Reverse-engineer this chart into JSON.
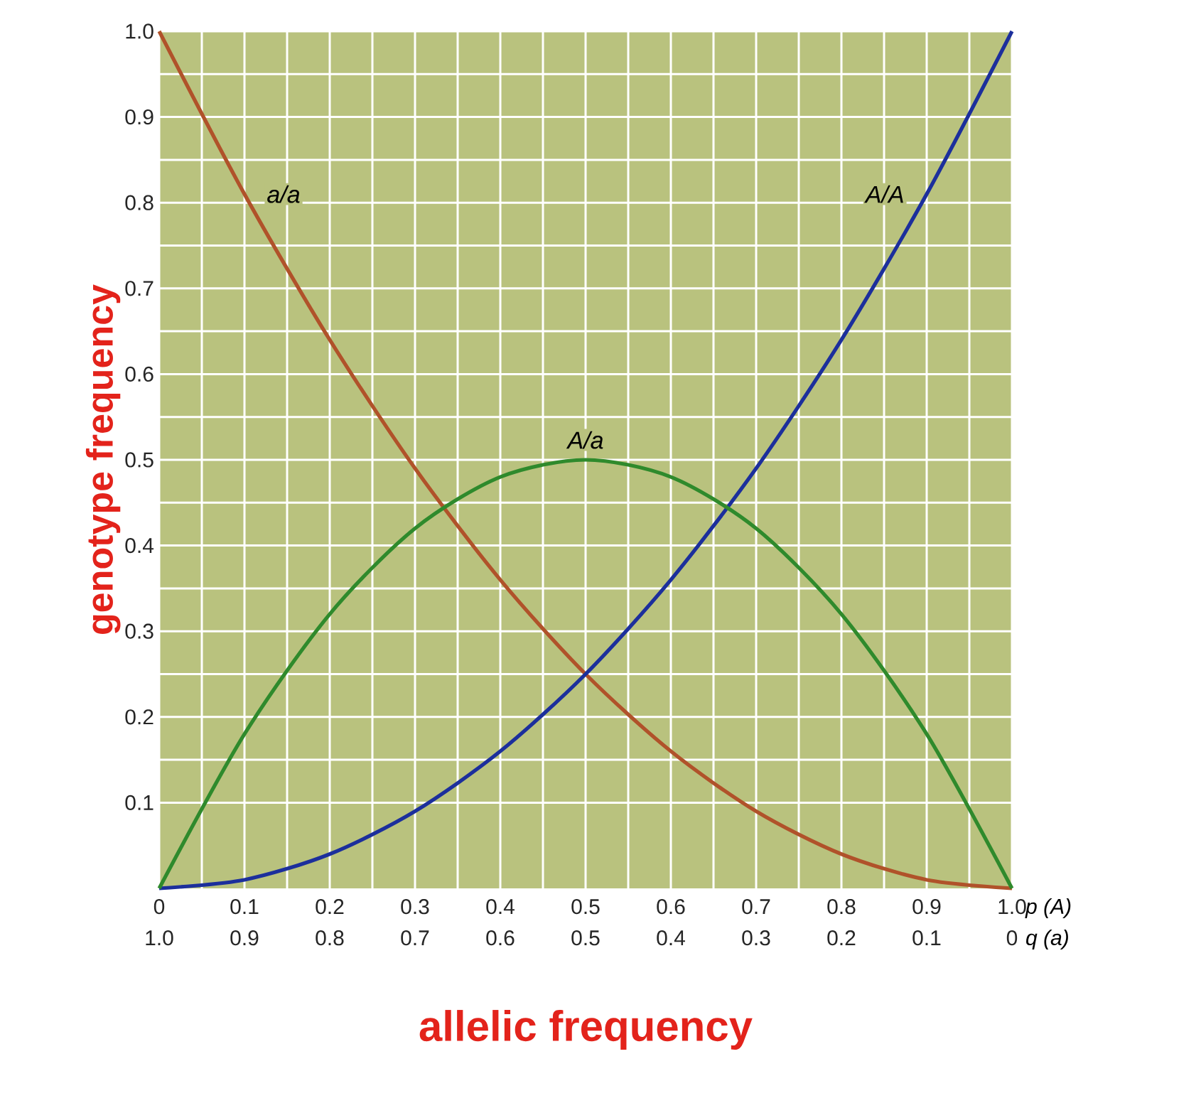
{
  "chart_data": {
    "type": "line",
    "xlabel": "p (A)",
    "x2label": "q (a)",
    "ylabel": "genotype frequency",
    "annotations": [
      "allelic frequency"
    ],
    "x": [
      0,
      0.1,
      0.2,
      0.3,
      0.4,
      0.5,
      0.6,
      0.7,
      0.8,
      0.9,
      1.0
    ],
    "series": [
      {
        "name": "a/a",
        "color": "#b0522a",
        "values": [
          1.0,
          0.81,
          0.64,
          0.49,
          0.36,
          0.25,
          0.16,
          0.09,
          0.04,
          0.01,
          0
        ]
      },
      {
        "name": "A/A",
        "color": "#1c2f9c",
        "values": [
          0,
          0.01,
          0.04,
          0.09,
          0.16,
          0.25,
          0.36,
          0.49,
          0.64,
          0.81,
          1.0
        ]
      },
      {
        "name": "A/a",
        "color": "#2f8a2c",
        "values": [
          0,
          0.18,
          0.32,
          0.42,
          0.48,
          0.5,
          0.48,
          0.42,
          0.32,
          0.18,
          0
        ]
      }
    ],
    "xlim": [
      0,
      1
    ],
    "xticks": [
      0,
      0.1,
      0.2,
      0.3,
      0.4,
      0.5,
      0.6,
      0.7,
      0.8,
      0.9,
      {
        "value": 1,
        "label": "1.0"
      }
    ],
    "x2lim": [
      1,
      0
    ],
    "x2ticks": [
      {
        "value": 1,
        "label": "1.0"
      },
      0.9,
      0.8,
      0.7,
      0.6,
      0.5,
      0.4,
      0.3,
      0.2,
      0.1,
      0
    ],
    "ylim": [
      0,
      1
    ],
    "yticks": [
      0.1,
      0.2,
      0.3,
      0.4,
      0.5,
      0.6,
      0.7,
      0.8,
      0.9,
      {
        "value": 1,
        "label": "1.0"
      }
    ],
    "grid": true
  }
}
